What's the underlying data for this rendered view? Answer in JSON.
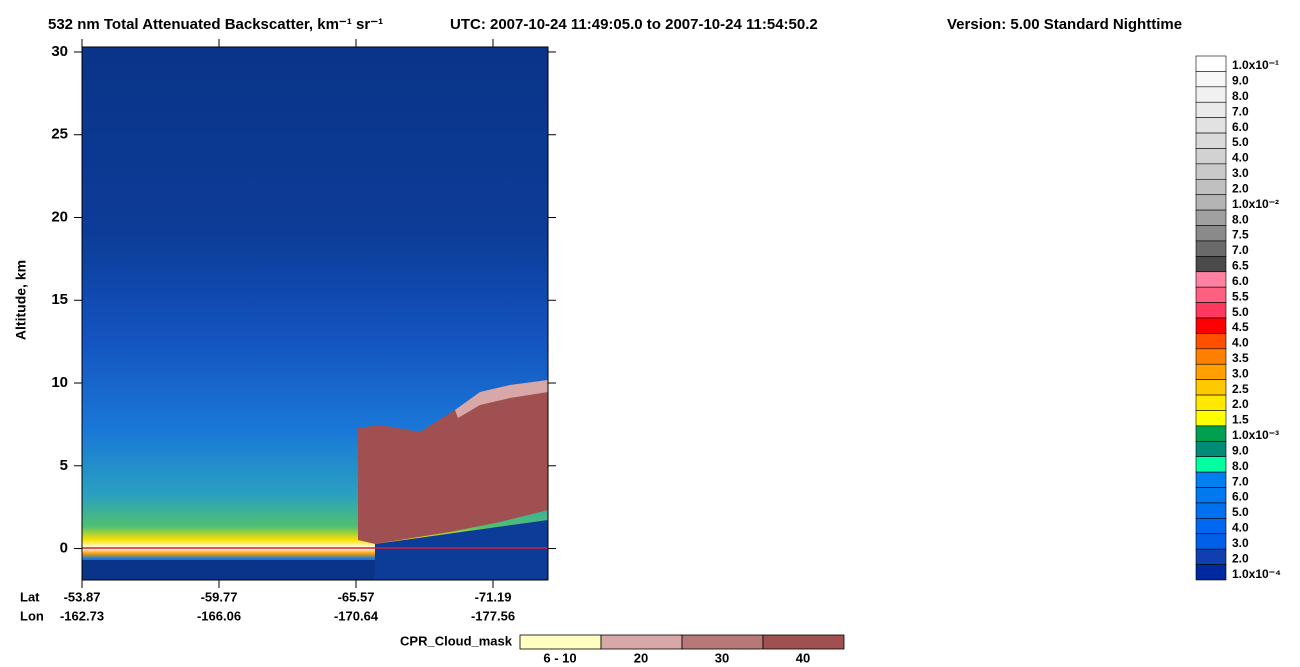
{
  "chart_data": {
    "type": "curtain",
    "title": "532 nm Total Attenuated Backscatter, km⁻¹ sr⁻¹",
    "utc": "UTC:  2007-10-24 11:49:05.0  to  2007-10-24 11:54:50.2",
    "version": "Version: 5.00  Standard  Nighttime",
    "y_label": "Altitude, km",
    "ylim": [
      -1.9,
      30.3
    ],
    "yticks": [
      0,
      5,
      10,
      15,
      20,
      25,
      30
    ],
    "lat_label": "Lat",
    "lats": [
      "-53.87",
      "-59.77",
      "-65.57",
      "-71.19"
    ],
    "lon_label": "Lon",
    "lons": [
      "-162.73",
      "-166.06",
      "-170.64",
      "-177.56"
    ],
    "colorbar": {
      "labels": [
        "1.0x10⁻¹",
        "9.0",
        "8.0",
        "7.0",
        "6.0",
        "5.0",
        "4.0",
        "3.0",
        "2.0",
        "1.0x10⁻²",
        "8.0",
        "7.5",
        "7.0",
        "6.5",
        "6.0",
        "5.5",
        "5.0",
        "4.5",
        "4.0",
        "3.5",
        "3.0",
        "2.5",
        "2.0",
        "1.5",
        "1.0x10⁻³",
        "9.0",
        "8.0",
        "7.0",
        "6.0",
        "5.0",
        "4.0",
        "3.0",
        "2.0",
        "1.0x10⁻⁴"
      ],
      "colors": [
        "#ffffff",
        "#f8f8f8",
        "#f1f1f1",
        "#eaeaea",
        "#e2e2e2",
        "#dadada",
        "#d2d2d2",
        "#cacaca",
        "#c0c0c0",
        "#b4b4b4",
        "#a0a0a0",
        "#8a8a8a",
        "#6a6a6a",
        "#4a4a4a",
        "#ff80a0",
        "#ff6080",
        "#ff3860",
        "#ff0000",
        "#ff5000",
        "#ff8000",
        "#ffa000",
        "#ffc800",
        "#ffe800",
        "#ffff00",
        "#00a050",
        "#008c78",
        "#00ffa0",
        "#0080f0",
        "#0078f0",
        "#0070f0",
        "#0068f0",
        "#0060e8",
        "#1040b0",
        "#0028a0"
      ]
    },
    "cloud_mask": {
      "label": "CPR_Cloud_mask",
      "classes": [
        "6 - 10",
        "20",
        "30",
        "40"
      ],
      "colors": [
        "#ffffc0",
        "#d8a8a8",
        "#b87878",
        "#a05050"
      ]
    }
  }
}
